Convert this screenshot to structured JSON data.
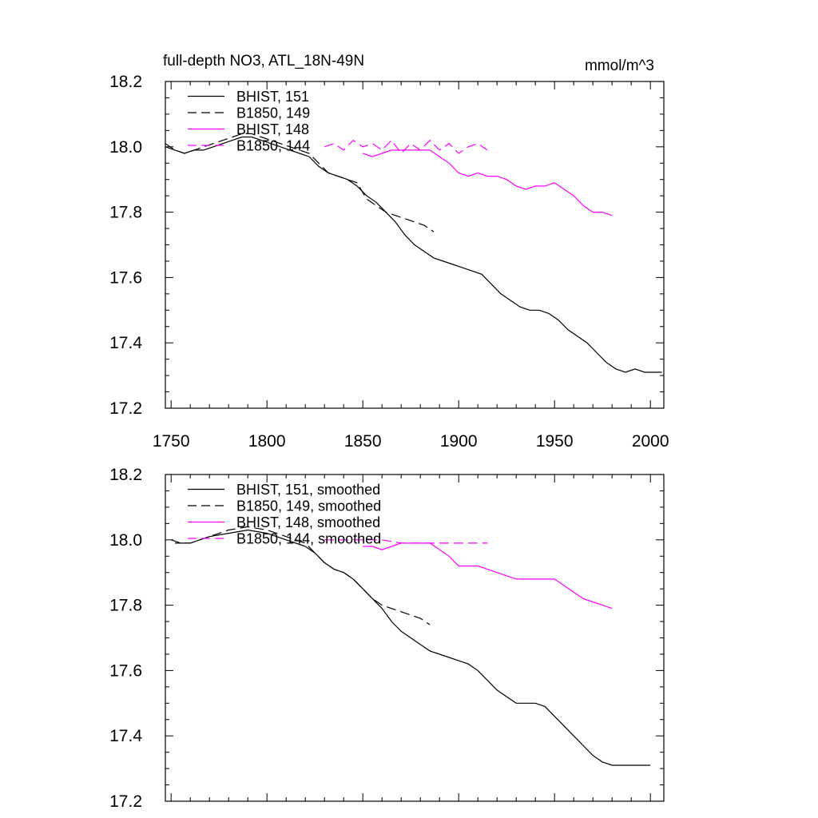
{
  "chart_data": [
    {
      "type": "line",
      "title": "full-depth NO3, ATL_18N-49N",
      "units": "mmol/m^3",
      "xlim": [
        1747,
        2007
      ],
      "ylim": [
        17.2,
        18.2
      ],
      "xticks": [
        1750,
        1800,
        1850,
        1900,
        1950,
        2000
      ],
      "yticks": [
        17.2,
        17.4,
        17.6,
        17.8,
        18.0,
        18.2
      ],
      "ytick_labels": [
        "17.2",
        "17.4",
        "17.6",
        "17.8",
        "18.0",
        "18.2"
      ],
      "legend_position": "top-left",
      "series": [
        {
          "name": "BHIST, 151",
          "color": "#000000",
          "dash": "solid",
          "x": [
            1747,
            1752,
            1757,
            1762,
            1767,
            1772,
            1777,
            1782,
            1787,
            1792,
            1797,
            1802,
            1807,
            1812,
            1817,
            1822,
            1827,
            1832,
            1837,
            1842,
            1847,
            1852,
            1857,
            1862,
            1867,
            1872,
            1877,
            1882,
            1887,
            1892,
            1897,
            1902,
            1907,
            1912,
            1917,
            1922,
            1927,
            1932,
            1937,
            1942,
            1947,
            1952,
            1957,
            1962,
            1967,
            1972,
            1977,
            1982,
            1987,
            1992,
            1997,
            2002,
            2006
          ],
          "y": [
            18.0,
            17.99,
            17.98,
            17.99,
            17.99,
            18.0,
            18.01,
            18.02,
            18.03,
            18.03,
            18.02,
            18.01,
            18.0,
            17.99,
            17.98,
            17.97,
            17.94,
            17.92,
            17.91,
            17.9,
            17.88,
            17.85,
            17.83,
            17.8,
            17.77,
            17.73,
            17.7,
            17.68,
            17.66,
            17.65,
            17.64,
            17.63,
            17.62,
            17.61,
            17.58,
            17.55,
            17.53,
            17.51,
            17.5,
            17.5,
            17.49,
            17.47,
            17.44,
            17.42,
            17.4,
            17.37,
            17.34,
            17.32,
            17.31,
            17.32,
            17.31,
            17.31,
            17.31
          ]
        },
        {
          "name": "B1850, 149",
          "color": "#000000",
          "dash": "dashed",
          "x": [
            1747,
            1752,
            1757,
            1762,
            1767,
            1772,
            1777,
            1782,
            1787,
            1792,
            1797,
            1802,
            1807,
            1812,
            1817,
            1822,
            1827,
            1832,
            1837,
            1842,
            1847,
            1852,
            1857,
            1862,
            1867,
            1872,
            1877,
            1882,
            1887
          ],
          "y": [
            18.01,
            17.99,
            17.98,
            17.99,
            18.0,
            18.01,
            18.02,
            18.03,
            18.04,
            18.04,
            18.03,
            18.02,
            18.01,
            18.0,
            17.99,
            17.98,
            17.95,
            17.92,
            17.91,
            17.9,
            17.89,
            17.84,
            17.82,
            17.8,
            17.79,
            17.78,
            17.77,
            17.76,
            17.74
          ]
        },
        {
          "name": "BHIST, 148",
          "color": "#ff00ff",
          "dash": "solid",
          "x": [
            1850,
            1855,
            1860,
            1865,
            1870,
            1875,
            1880,
            1885,
            1890,
            1895,
            1900,
            1905,
            1910,
            1915,
            1920,
            1925,
            1930,
            1935,
            1940,
            1945,
            1950,
            1955,
            1960,
            1965,
            1970,
            1975,
            1980
          ],
          "y": [
            17.98,
            17.97,
            17.98,
            17.99,
            17.99,
            17.99,
            17.99,
            17.99,
            17.97,
            17.95,
            17.92,
            17.91,
            17.92,
            17.91,
            17.91,
            17.9,
            17.88,
            17.87,
            17.88,
            17.88,
            17.89,
            17.87,
            17.85,
            17.82,
            17.8,
            17.8,
            17.79
          ]
        },
        {
          "name": "B1850, 144",
          "color": "#ff00ff",
          "dash": "dashed",
          "x": [
            1830,
            1835,
            1840,
            1845,
            1850,
            1855,
            1860,
            1865,
            1870,
            1875,
            1880,
            1885,
            1890,
            1895,
            1900,
            1905,
            1910,
            1915
          ],
          "y": [
            18.0,
            18.01,
            17.99,
            18.02,
            18.0,
            18.01,
            17.99,
            18.02,
            17.98,
            18.01,
            17.99,
            18.02,
            17.99,
            18.01,
            17.98,
            18.0,
            18.01,
            17.99
          ]
        }
      ]
    },
    {
      "type": "line",
      "title": "",
      "xlim": [
        1747,
        2007
      ],
      "ylim": [
        17.2,
        18.2
      ],
      "xticks": [
        1750,
        1800,
        1850,
        1900,
        1950,
        2000
      ],
      "yticks": [
        17.2,
        17.4,
        17.6,
        17.8,
        18.0,
        18.2
      ],
      "ytick_labels": [
        "17.2",
        "17.4",
        "17.6",
        "17.8",
        "18.0",
        "18.2"
      ],
      "legend_position": "top-left",
      "series": [
        {
          "name": "BHIST, 151, smoothed",
          "color": "#000000",
          "dash": "solid",
          "x": [
            1752,
            1760,
            1770,
            1780,
            1790,
            1800,
            1810,
            1820,
            1825,
            1830,
            1835,
            1840,
            1845,
            1850,
            1855,
            1860,
            1865,
            1870,
            1875,
            1880,
            1885,
            1890,
            1895,
            1900,
            1905,
            1910,
            1915,
            1920,
            1925,
            1930,
            1935,
            1940,
            1945,
            1950,
            1955,
            1960,
            1965,
            1970,
            1975,
            1980,
            1985,
            1990,
            1995,
            2000
          ],
          "y": [
            17.99,
            17.99,
            18.01,
            18.02,
            18.03,
            18.02,
            18.0,
            17.98,
            17.96,
            17.93,
            17.91,
            17.9,
            17.88,
            17.85,
            17.82,
            17.79,
            17.75,
            17.72,
            17.7,
            17.68,
            17.66,
            17.65,
            17.64,
            17.63,
            17.62,
            17.6,
            17.57,
            17.54,
            17.52,
            17.5,
            17.5,
            17.5,
            17.49,
            17.46,
            17.43,
            17.4,
            17.37,
            17.34,
            17.32,
            17.31,
            17.31,
            17.31,
            17.31,
            17.31
          ]
        },
        {
          "name": "B1850, 149, smoothed",
          "color": "#000000",
          "dash": "dashed",
          "x": [
            1750,
            1755,
            1760,
            1770,
            1780,
            1790,
            1800,
            1810,
            1820,
            1825,
            1830,
            1835,
            1840,
            1845,
            1850,
            1855,
            1860,
            1865,
            1870,
            1875,
            1880,
            1885
          ],
          "y": [
            18.0,
            17.99,
            17.99,
            18.01,
            18.03,
            18.04,
            18.03,
            18.01,
            17.99,
            17.96,
            17.93,
            17.91,
            17.9,
            17.88,
            17.85,
            17.82,
            17.8,
            17.79,
            17.78,
            17.77,
            17.76,
            17.74
          ]
        },
        {
          "name": "BHIST, 148, smoothed",
          "color": "#ff00ff",
          "dash": "solid",
          "x": [
            1850,
            1855,
            1860,
            1865,
            1870,
            1875,
            1880,
            1885,
            1890,
            1895,
            1900,
            1905,
            1910,
            1915,
            1920,
            1925,
            1930,
            1935,
            1940,
            1945,
            1950,
            1955,
            1960,
            1965,
            1970,
            1975,
            1980
          ],
          "y": [
            17.98,
            17.98,
            17.97,
            17.98,
            17.99,
            17.99,
            17.99,
            17.99,
            17.97,
            17.95,
            17.92,
            17.92,
            17.92,
            17.91,
            17.9,
            17.89,
            17.88,
            17.88,
            17.88,
            17.88,
            17.88,
            17.86,
            17.84,
            17.82,
            17.81,
            17.8,
            17.79
          ]
        },
        {
          "name": "B1850, 144, smoothed",
          "color": "#ff00ff",
          "dash": "dashed",
          "x": [
            1830,
            1840,
            1850,
            1860,
            1870,
            1880,
            1890,
            1900,
            1910,
            1915
          ],
          "y": [
            18.0,
            18.0,
            18.0,
            18.0,
            17.99,
            17.99,
            17.99,
            17.99,
            17.99,
            17.99
          ]
        }
      ]
    }
  ]
}
